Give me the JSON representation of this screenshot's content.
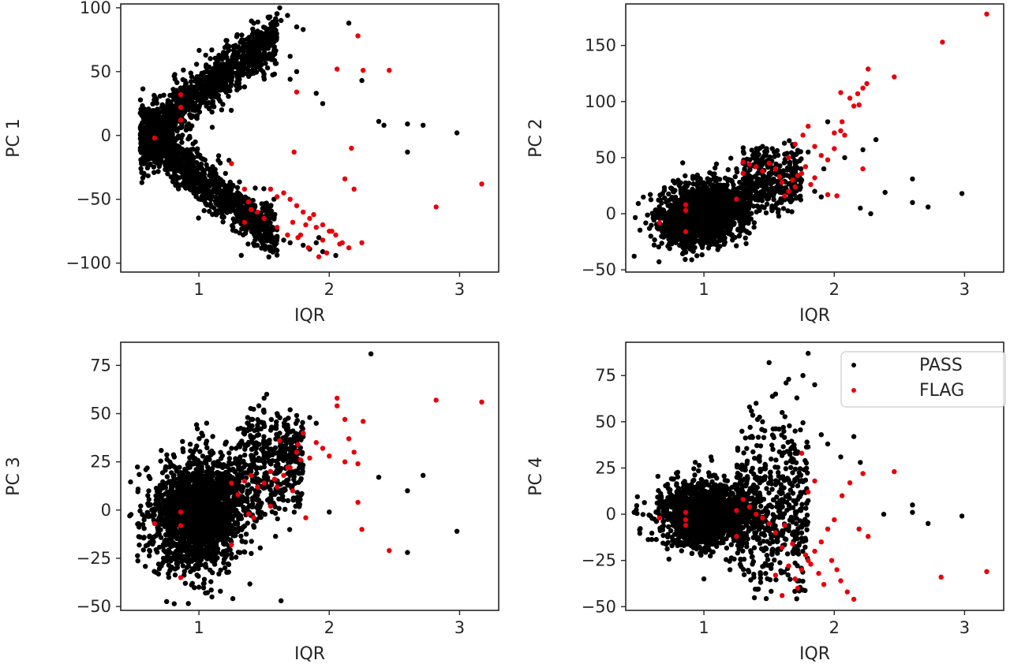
{
  "colors": {
    "pass": "#000000",
    "flag": "#e8000b"
  },
  "legend": {
    "placement": "upper right of PC 4 panel",
    "entries": [
      {
        "label": "PASS",
        "color": "#000000"
      },
      {
        "label": "FLAG",
        "color": "#e8000b"
      }
    ]
  },
  "chart_data": [
    {
      "type": "scatter",
      "title": "",
      "xlabel": "IQR",
      "ylabel": "PC 1",
      "xlim": [
        0.4,
        3.3
      ],
      "ylim": [
        -107,
        103
      ],
      "xticks": [
        1,
        2,
        3
      ],
      "yticks": [
        -100,
        -50,
        0,
        50,
        100
      ],
      "ytick_labels": [
        "−100",
        "−50",
        "0",
        "50",
        "100"
      ],
      "grid": false,
      "series": [
        {
          "name": "PASS",
          "color": "#000000",
          "x": [
            1.62,
            1.63,
            1.68,
            1.75,
            1.8,
            1.55,
            1.5,
            1.45,
            1.45,
            1.55,
            1.4,
            1.5,
            1.35,
            1.7,
            1.75,
            1.7,
            1.58,
            1.9,
            1.95,
            2.15,
            2.25,
            2.38,
            2.42,
            2.6,
            2.72,
            2.98,
            2.6,
            1.5,
            1.3,
            1.45,
            1.55,
            1.6,
            1.65,
            1.7,
            1.9,
            1.95,
            2.05,
            1.8,
            1.85,
            1.92
          ],
          "y": [
            100,
            90,
            94,
            85,
            83,
            84,
            72,
            66,
            55,
            60,
            56,
            48,
            38,
            62,
            50,
            44,
            48,
            33,
            25,
            88,
            43,
            11,
            8,
            9,
            8,
            2,
            -13,
            -58,
            -66,
            -70,
            -73,
            -79,
            -82,
            -84,
            -84,
            -91,
            -94,
            -86,
            -89,
            -80
          ]
        },
        {
          "name": "FLAG",
          "color": "#e8000b",
          "x": [
            2.22,
            2.06,
            2.26,
            2.46,
            1.75,
            0.86,
            0.86,
            0.86,
            0.66,
            1.73,
            2.17,
            2.12,
            2.19,
            2.82,
            3.17,
            1.25,
            1.35,
            1.38,
            1.55,
            1.6,
            1.65,
            1.7,
            1.75,
            1.8,
            1.85,
            1.9,
            1.95,
            2.0,
            2.05,
            2.1,
            2.15,
            2.25,
            1.4,
            1.5,
            1.45,
            1.35,
            1.72,
            1.78,
            1.82,
            1.88,
            1.95,
            2.02,
            1.6,
            1.68,
            1.76,
            1.84,
            1.92,
            1.98,
            2.08
          ],
          "y": [
            78,
            52,
            51,
            51,
            34,
            32,
            22,
            12,
            -2,
            -13,
            -10,
            -34,
            -42,
            -56,
            -38,
            -22,
            -42,
            -52,
            -42,
            -48,
            -45,
            -50,
            -55,
            -60,
            -65,
            -72,
            -70,
            -75,
            -78,
            -84,
            -88,
            -84,
            -58,
            -65,
            -60,
            -68,
            -68,
            -78,
            -70,
            -62,
            -82,
            -75,
            -72,
            -78,
            -80,
            -88,
            -95,
            -92,
            -85
          ]
        }
      ]
    },
    {
      "type": "scatter",
      "title": "",
      "xlabel": "IQR",
      "ylabel": "PC 2",
      "xlim": [
        0.4,
        3.3
      ],
      "ylim": [
        -52,
        187
      ],
      "xticks": [
        1,
        2,
        3
      ],
      "yticks": [
        -50,
        0,
        50,
        100,
        150
      ],
      "ytick_labels": [
        "−50",
        "0",
        "50",
        "100",
        "150"
      ],
      "grid": false,
      "series": [
        {
          "name": "PASS",
          "color": "#000000",
          "x": [
            2.32,
            2.08,
            2.22,
            2.39,
            2.6,
            2.72,
            2.98,
            2.6,
            2.28,
            2.2,
            1.95,
            1.92,
            1.85,
            1.9,
            1.8,
            1.7,
            1.75,
            1.6,
            1.55,
            1.5,
            1.45,
            1.38,
            1.3,
            1.25,
            1.2
          ],
          "y": [
            66,
            50,
            57,
            19,
            31,
            6,
            18,
            10,
            0,
            5,
            82,
            40,
            20,
            15,
            55,
            45,
            30,
            35,
            20,
            28,
            60,
            50,
            45,
            40,
            30
          ]
        },
        {
          "name": "FLAG",
          "color": "#e8000b",
          "x": [
            3.17,
            2.83,
            2.26,
            2.25,
            2.46,
            2.22,
            2.18,
            2.12,
            2.15,
            2.06,
            2.05,
            2.0,
            2.08,
            2.19,
            2.22,
            2.02,
            1.95,
            1.85,
            1.82,
            1.78,
            1.75,
            1.72,
            1.7,
            1.68,
            1.65,
            1.62,
            1.6,
            1.58,
            1.55,
            1.5,
            1.45,
            1.4,
            1.35,
            1.3,
            1.8,
            1.85,
            1.9,
            1.95,
            2.0,
            1.76,
            1.7,
            1.65,
            0.86,
            0.86,
            0.66,
            0.86,
            1.25,
            1.3,
            2.05
          ],
          "y": [
            178,
            153,
            129,
            116,
            122,
            112,
            107,
            103,
            96,
            82,
            74,
            72,
            70,
            97,
            40,
            16,
            17,
            32,
            26,
            42,
            36,
            34,
            24,
            30,
            20,
            16,
            28,
            33,
            40,
            45,
            38,
            42,
            44,
            36,
            78,
            60,
            52,
            48,
            58,
            70,
            62,
            50,
            8,
            3,
            -8,
            -16,
            13,
            46,
            108
          ]
        }
      ]
    },
    {
      "type": "scatter",
      "title": "",
      "xlabel": "IQR",
      "ylabel": "PC 3",
      "xlim": [
        0.4,
        3.3
      ],
      "ylim": [
        -52,
        87
      ],
      "xticks": [
        1,
        2,
        3
      ],
      "yticks": [
        -50,
        -25,
        0,
        25,
        50,
        75
      ],
      "ytick_labels": [
        "−50",
        "−25",
        "0",
        "25",
        "50",
        "75"
      ],
      "grid": false,
      "series": [
        {
          "name": "PASS",
          "color": "#000000",
          "x": [
            2.32,
            1.52,
            1.5,
            2.38,
            2.6,
            2.72,
            2.98,
            2.6,
            1.63,
            2.0,
            1.6,
            1.4,
            1.3,
            1.8,
            1.85,
            1.9,
            1.45,
            1.35,
            1.25,
            1.1,
            1.05,
            0.95,
            1.0,
            1.2,
            1.55,
            1.65,
            1.7,
            1.75
          ],
          "y": [
            81,
            60,
            58,
            17,
            10,
            18,
            -11,
            -22,
            -47,
            -1,
            50,
            47,
            42,
            38,
            48,
            45,
            44,
            40,
            32,
            -45,
            -43,
            -38,
            -40,
            -30,
            20,
            28,
            52,
            49
          ]
        },
        {
          "name": "FLAG",
          "color": "#e8000b",
          "x": [
            2.82,
            3.17,
            2.06,
            2.06,
            2.26,
            2.12,
            2.15,
            2.19,
            2.22,
            2.25,
            2.46,
            2.22,
            2.12,
            2.0,
            1.95,
            1.9,
            1.85,
            1.8,
            1.75,
            1.7,
            1.65,
            1.6,
            1.58,
            1.55,
            1.5,
            1.45,
            1.4,
            1.35,
            1.3,
            1.25,
            1.72,
            1.78,
            1.68,
            1.62,
            1.82,
            1.76,
            0.86,
            0.86,
            0.86,
            0.66,
            1.25,
            1.38,
            1.55,
            1.42
          ],
          "y": [
            57,
            56,
            58,
            54,
            46,
            47,
            37,
            30,
            4,
            -10,
            -21,
            24,
            25,
            28,
            32,
            35,
            27,
            40,
            30,
            22,
            18,
            12,
            16,
            20,
            14,
            12,
            18,
            15,
            8,
            14,
            10,
            26,
            22,
            36,
            -4,
            34,
            -1,
            -8,
            -35,
            -7,
            -18,
            -2,
            2,
            -4
          ]
        }
      ]
    },
    {
      "type": "scatter",
      "title": "",
      "xlabel": "IQR",
      "ylabel": "PC 4",
      "xlim": [
        0.4,
        3.3
      ],
      "ylim": [
        -52,
        93
      ],
      "xticks": [
        1,
        2,
        3
      ],
      "yticks": [
        -50,
        -25,
        0,
        25,
        50,
        75
      ],
      "ytick_labels": [
        "−50",
        "−25",
        "0",
        "25",
        "50",
        "75"
      ],
      "grid": false,
      "series": [
        {
          "name": "PASS",
          "color": "#000000",
          "x": [
            1.8,
            1.5,
            1.65,
            1.63,
            1.76,
            1.85,
            2.15,
            2.05,
            2.2,
            2.38,
            2.6,
            2.6,
            2.72,
            2.98,
            1.4,
            1.45,
            1.6,
            1.7,
            1.55,
            1.35,
            1.0,
            1.2,
            1.9,
            1.95
          ],
          "y": [
            87,
            82,
            73,
            71,
            75,
            70,
            42,
            31,
            28,
            0,
            5,
            1,
            -5,
            -1,
            60,
            50,
            55,
            45,
            65,
            58,
            -35,
            -30,
            43,
            38
          ]
        },
        {
          "name": "FLAG",
          "color": "#e8000b",
          "x": [
            2.46,
            2.22,
            2.12,
            2.06,
            2.0,
            1.95,
            1.9,
            1.85,
            1.8,
            1.75,
            1.7,
            1.65,
            1.6,
            1.55,
            1.5,
            1.45,
            1.4,
            1.35,
            1.3,
            1.25,
            2.26,
            2.19,
            2.15,
            2.1,
            2.05,
            2.02,
            1.98,
            1.92,
            1.88,
            1.82,
            1.78,
            1.72,
            1.68,
            1.62,
            2.82,
            3.17,
            0.86,
            0.86,
            0.86,
            0.66,
            1.25,
            1.6,
            1.55,
            1.75,
            1.8,
            1.85
          ],
          "y": [
            23,
            22,
            17,
            10,
            -3,
            -8,
            -15,
            -20,
            -25,
            -30,
            -35,
            -28,
            -18,
            -10,
            -5,
            -2,
            0,
            4,
            8,
            2,
            -12,
            -8,
            -46,
            -42,
            -36,
            -30,
            -25,
            -38,
            -32,
            -27,
            -22,
            -40,
            -16,
            -6,
            -34,
            -31,
            1,
            -3,
            -6,
            -2,
            -12,
            -44,
            -33,
            33,
            12,
            18
          ]
        }
      ]
    }
  ]
}
